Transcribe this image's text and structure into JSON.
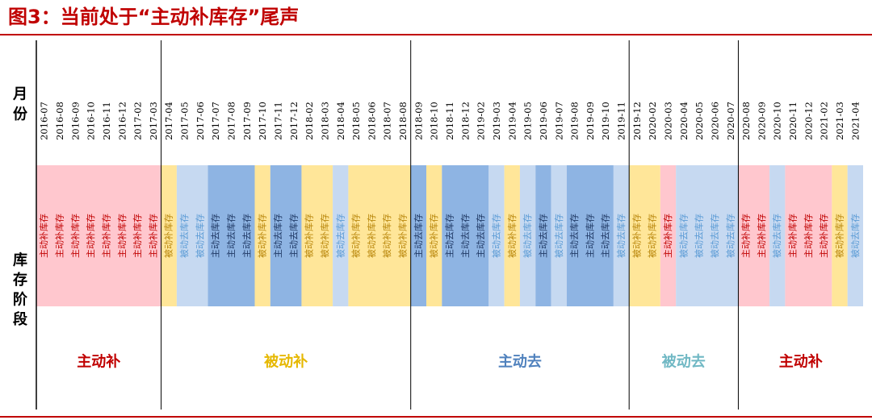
{
  "title": "图3：当前处于“主动补库存”尾声",
  "y_labels": {
    "month": "月份",
    "stage": "库存阶段"
  },
  "chart_data": {
    "type": "table",
    "months": [
      "2016-07",
      "2016-08",
      "2016-09",
      "2016-10",
      "2016-11",
      "2016-12",
      "2017-02",
      "2017-03",
      "2017-04",
      "2017-05",
      "2017-06",
      "2017-07",
      "2017-08",
      "2017-09",
      "2017-10",
      "2017-11",
      "2017-12",
      "2018-02",
      "2018-03",
      "2018-04",
      "2018-05",
      "2018-06",
      "2018-07",
      "2018-08",
      "2018-09",
      "2018-10",
      "2018-11",
      "2018-12",
      "2019-02",
      "2019-03",
      "2019-04",
      "2019-05",
      "2019-06",
      "2019-07",
      "2019-08",
      "2019-09",
      "2019-10",
      "2019-11",
      "2019-12",
      "2020-02",
      "2020-03",
      "2020-04",
      "2020-05",
      "2020-06",
      "2020-07",
      "2020-08",
      "2020-09",
      "2020-10",
      "2020-11",
      "2020-12",
      "2021-02",
      "2021-03",
      "2021-04"
    ],
    "stages": [
      "主动补库存",
      "主动补库存",
      "主动补库存",
      "主动补库存",
      "主动补库存",
      "主动补库存",
      "主动补库存",
      "主动补库存",
      "被动补库存",
      "被动去库存",
      "被动去库存",
      "主动去库存",
      "主动去库存",
      "主动去库存",
      "被动补库存",
      "主动去库存",
      "主动去库存",
      "被动补库存",
      "被动补库存",
      "被动去库存",
      "被动补库存",
      "被动补库存",
      "被动补库存",
      "被动补库存",
      "主动去库存",
      "被动补库存",
      "主动去库存",
      "主动去库存",
      "主动去库存",
      "被动去库存",
      "被动补库存",
      "被动去库存",
      "主动去库存",
      "被动去库存",
      "主动去库存",
      "主动去库存",
      "主动去库存",
      "被动去库存",
      "被动补库存",
      "被动补库存",
      "主动补库存",
      "被动去库存",
      "被动去库存",
      "被动去库存",
      "被动去库存",
      "主动补库存",
      "主动补库存",
      "被动去库存",
      "主动补库存",
      "主动补库存",
      "主动补库存",
      "被动补库存",
      "被动去库存"
    ],
    "phases": [
      {
        "label": "主动补",
        "start": "2016-07",
        "end": "2017-03",
        "color": "#c00000"
      },
      {
        "label": "被动补",
        "start": "2017-04",
        "end": "2018-08",
        "color": "#e6b800"
      },
      {
        "label": "主动去",
        "start": "2018-09",
        "end": "2019-11",
        "color": "#4f81bd"
      },
      {
        "label": "被动去",
        "start": "2019-12",
        "end": "2020-07",
        "color": "#70b8c4"
      },
      {
        "label": "主动补",
        "start": "2020-08",
        "end": "2021-04",
        "color": "#c00000"
      }
    ],
    "stage_colors": {
      "主动补库存": {
        "fill": "#ffc7ce",
        "text": "#c00000"
      },
      "被动补库存": {
        "fill": "#ffe699",
        "text": "#b8860b"
      },
      "主动去库存": {
        "fill": "#8eb4e3",
        "text": "#1f3864"
      },
      "被动去库存": {
        "fill": "#c6d9f1",
        "text": "#5b9bd5"
      }
    }
  }
}
